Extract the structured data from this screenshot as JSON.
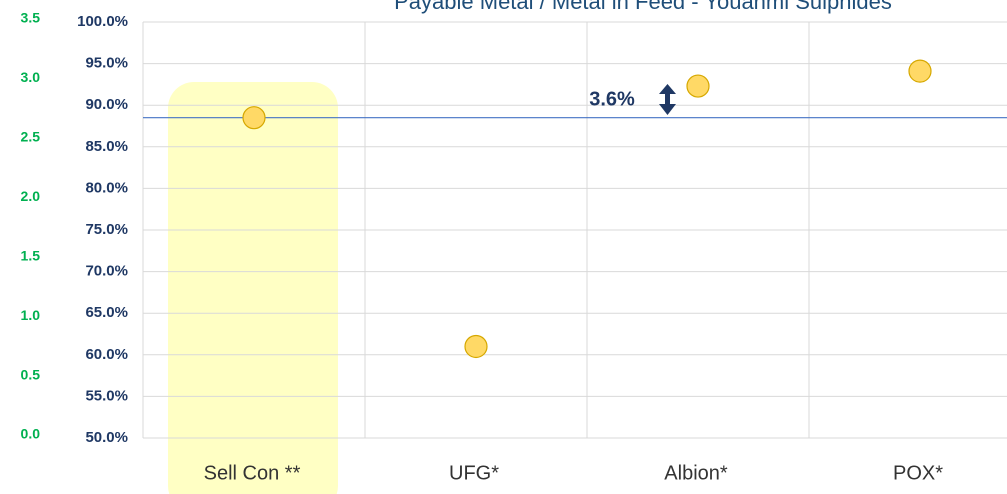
{
  "chart_data": {
    "type": "scatter",
    "title": "Payable Metal / Metal in Feed - Youanmi Sulphides",
    "categories": [
      "Sell Con **",
      "UFG*",
      "Albion*",
      "POX*"
    ],
    "values": [
      88.5,
      61.0,
      92.3,
      94.1
    ],
    "color": "#ffd966",
    "reference_line": 88.5,
    "reference_color": "#4472c4",
    "annotation": "3.6%",
    "ylim": [
      50,
      100
    ],
    "yticks": [
      {
        "value": 50,
        "label": "50.0%"
      },
      {
        "value": 55,
        "label": "55.0%"
      },
      {
        "value": 60,
        "label": "60.0%"
      },
      {
        "value": 65,
        "label": "65.0%"
      },
      {
        "value": 70,
        "label": "70.0%"
      },
      {
        "value": 75,
        "label": "75.0%"
      },
      {
        "value": 80,
        "label": "80.0%"
      },
      {
        "value": 85,
        "label": "85.0%"
      },
      {
        "value": 90,
        "label": "90.0%"
      },
      {
        "value": 95,
        "label": "95.0%"
      },
      {
        "value": 100,
        "label": "100.0%"
      }
    ],
    "y2lim": [
      0,
      3.5
    ],
    "y2ticks": [
      {
        "value": 0,
        "label": "0.0"
      },
      0.5,
      {
        "value": 1,
        "label": "1.0"
      },
      1.5,
      {
        "value": 2,
        "label": "2.0"
      },
      2.5,
      {
        "value": 3,
        "label": "3.0"
      },
      3.5
    ],
    "grid": true
  }
}
